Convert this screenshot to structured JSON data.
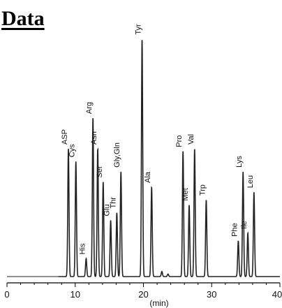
{
  "title": "Data",
  "chart_data": {
    "type": "line",
    "xlabel": "(min)",
    "ylabel": "",
    "xlim": [
      0,
      40
    ],
    "ylim": [
      0,
      100
    ],
    "x_ticks": [
      "0",
      "10",
      "20",
      "30",
      "40"
    ],
    "grid": false,
    "peaks": [
      {
        "name": "ASP",
        "x": 9.0,
        "y": 50
      },
      {
        "name": "Cys",
        "x": 10.1,
        "y": 45
      },
      {
        "name": "His",
        "x": 11.6,
        "y": 7
      },
      {
        "name": "Arg",
        "x": 12.6,
        "y": 62
      },
      {
        "name": "Asn",
        "x": 13.3,
        "y": 50
      },
      {
        "name": "Ser",
        "x": 14.1,
        "y": 37
      },
      {
        "name": "Glu",
        "x": 15.2,
        "y": 22
      },
      {
        "name": "Thr",
        "x": 16.1,
        "y": 25
      },
      {
        "name": "Gly,Gln",
        "x": 16.7,
        "y": 41
      },
      {
        "name": "Tyr",
        "x": 19.8,
        "y": 93
      },
      {
        "name": "Ala",
        "x": 21.2,
        "y": 35
      },
      {
        "name": "Pro",
        "x": 25.8,
        "y": 49
      },
      {
        "name": "Met",
        "x": 26.7,
        "y": 28
      },
      {
        "name": "Val",
        "x": 27.5,
        "y": 50
      },
      {
        "name": "Trp",
        "x": 29.2,
        "y": 30
      },
      {
        "name": "Phe",
        "x": 33.9,
        "y": 14
      },
      {
        "name": "Lys",
        "x": 34.6,
        "y": 41
      },
      {
        "name": "Ile",
        "x": 35.3,
        "y": 17
      },
      {
        "name": "Leu",
        "x": 36.2,
        "y": 33
      }
    ],
    "minor_peaks": [
      {
        "x": 22.7,
        "y": 2
      },
      {
        "x": 23.6,
        "y": 1
      }
    ],
    "colors": {
      "trace": "#222222",
      "axis": "#000000"
    }
  }
}
